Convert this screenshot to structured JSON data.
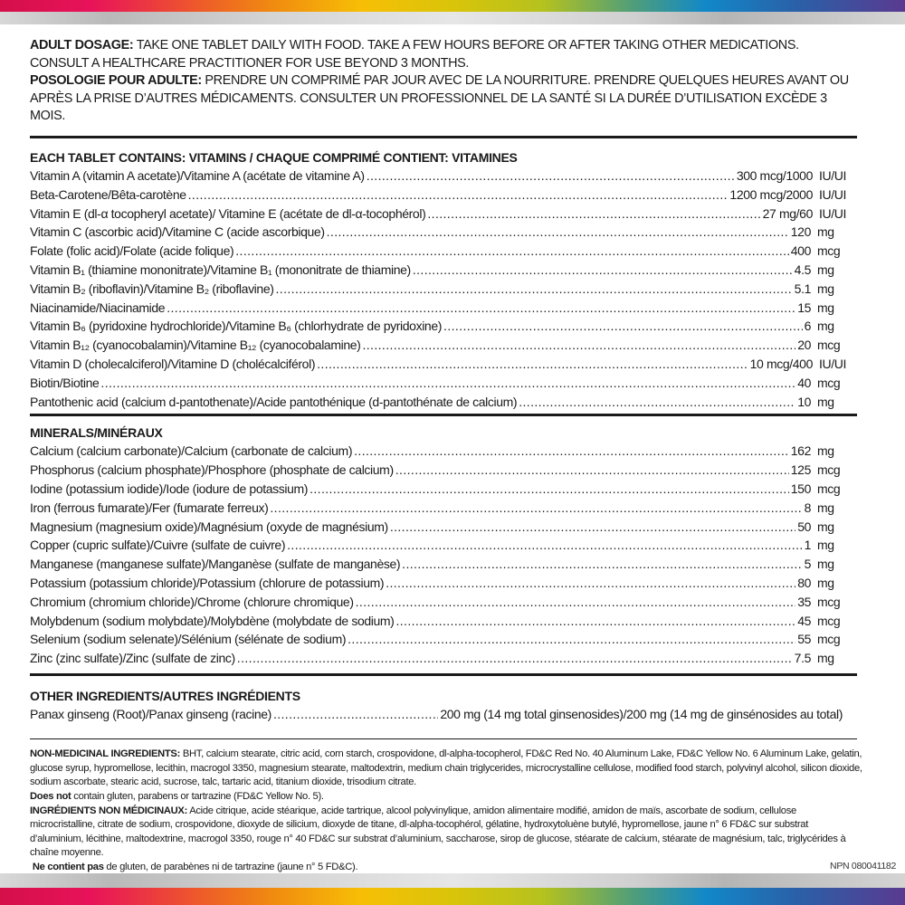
{
  "colors": {
    "rainbow": [
      "#d4104a",
      "#f08a10",
      "#f7bf05",
      "#b5c21e",
      "#1188c8",
      "#5a3a90"
    ],
    "silver": "#d0d0d0",
    "text": "#1a1a1a"
  },
  "dosage": {
    "en_label": "ADULT DOSAGE:",
    "en_text": " TAKE ONE TABLET DAILY WITH FOOD. TAKE A FEW HOURS BEFORE OR AFTER TAKING OTHER MEDICATIONS. CONSULT A HEALTHCARE PRACTITIONER FOR USE BEYOND 3 MONTHS.",
    "fr_label": "POSOLOGIE POUR ADULTE:",
    "fr_text": " PRENDRE UN COMPRIMÉ PAR JOUR AVEC DE LA NOURRITURE. PRENDRE QUELQUES HEURES AVANT OU APRÈS LA PRISE D’AUTRES MÉDICAMENTS. CONSULTER UN PROFESSIONNEL DE LA SANTÉ SI LA DURÉE D’UTILISATION EXCÈDE 3 MOIS."
  },
  "vitamins": {
    "heading": "EACH TABLET CONTAINS: VITAMINS / CHAQUE COMPRIMÉ CONTIENT: VITAMINES",
    "items": [
      {
        "name": "Vitamin A (vitamin A acetate)/Vitamine A (acétate de vitamine A)",
        "value": "300 mcg/1000",
        "unit": "IU/UI"
      },
      {
        "name": "Beta-Carotene/Bêta-carotène",
        "value": "1200 mcg/2000",
        "unit": "IU/UI"
      },
      {
        "name": "Vitamin E (dl-α tocopheryl acetate)/ Vitamine E (acétate de dl-α-tocophérol)",
        "value": "27 mg/60",
        "unit": "IU/UI"
      },
      {
        "name": "Vitamin C (ascorbic acid)/Vitamine C (acide ascorbique)",
        "value": "120",
        "unit": "mg"
      },
      {
        "name": "Folate (folic acid)/Folate (acide folique)",
        "value": "400",
        "unit": "mcg"
      },
      {
        "name": "Vitamin B₁ (thiamine mononitrate)/Vitamine B₁ (mononitrate de thiamine)",
        "value": "4.5",
        "unit": "mg"
      },
      {
        "name": "Vitamin B₂ (riboflavin)/Vitamine B₂ (riboflavine)",
        "value": "5.1",
        "unit": "mg"
      },
      {
        "name": "Niacinamide/Niacinamide",
        "value": "15",
        "unit": "mg"
      },
      {
        "name": "Vitamin B₆ (pyridoxine hydrochloride)/Vitamine B₆ (chlorhydrate de pyridoxine)",
        "value": "6",
        "unit": "mg"
      },
      {
        "name": "Vitamin B₁₂ (cyanocobalamin)/Vitamine B₁₂ (cyanocobalamine)",
        "value": "20",
        "unit": "mcg"
      },
      {
        "name": "Vitamin D (cholecalciferol)/Vitamine D (cholécalciférol)",
        "value": "10 mcg/400",
        "unit": "IU/UI"
      },
      {
        "name": "Biotin/Biotine",
        "value": "40",
        "unit": "mcg"
      },
      {
        "name": "Pantothenic acid (calcium d-pantothenate)/Acide pantothénique (d-pantothénate de calcium)",
        "value": "10",
        "unit": "mg"
      }
    ]
  },
  "minerals": {
    "heading": "MINERALS/MINÉRAUX",
    "items": [
      {
        "name": "Calcium (calcium carbonate)/Calcium (carbonate de calcium)",
        "value": "162",
        "unit": "mg"
      },
      {
        "name": "Phosphorus (calcium phosphate)/Phosphore (phosphate de calcium)",
        "value": "125",
        "unit": "mcg"
      },
      {
        "name": "Iodine (potassium iodide)/Iode (iodure de potassium)",
        "value": "150",
        "unit": "mcg"
      },
      {
        "name": "Iron (ferrous fumarate)/Fer (fumarate ferreux)",
        "value": "8",
        "unit": "mg"
      },
      {
        "name": "Magnesium (magnesium oxide)/Magnésium (oxyde de magnésium)",
        "value": "50",
        "unit": "mg"
      },
      {
        "name": "Copper (cupric sulfate)/Cuivre (sulfate de cuivre)",
        "value": "1",
        "unit": "mg"
      },
      {
        "name": "Manganese (manganese sulfate)/Manganèse (sulfate de manganèse)",
        "value": "5",
        "unit": "mg"
      },
      {
        "name": "Potassium (potassium chloride)/Potassium (chlorure de potassium)",
        "value": "80",
        "unit": "mg"
      },
      {
        "name": "Chromium (chromium chloride)/Chrome (chlorure chromique)",
        "value": "35",
        "unit": "mcg"
      },
      {
        "name": "Molybdenum (sodium molybdate)/Molybdène (molybdate de sodium)",
        "value": "45",
        "unit": "mcg"
      },
      {
        "name": "Selenium (sodium selenate)/Sélénium (sélénate de sodium)",
        "value": "55",
        "unit": "mcg"
      },
      {
        "name": "Zinc (zinc sulfate)/Zinc (sulfate de zinc)",
        "value": "7.5",
        "unit": "mg"
      }
    ]
  },
  "other": {
    "heading": "OTHER INGREDIENTS/AUTRES INGRÉDIENTS",
    "name": "Panax ginseng (Root)/Panax ginseng (racine)",
    "value": "200 mg (14 mg total ginsenosides)/200 mg (14 mg de ginsénosides au total)"
  },
  "non_medicinal": {
    "en_label": "NON-MEDICINAL INGREDIENTS:",
    "en_text": " BHT, calcium stearate, citric acid, corn starch, crospovidone, dl-alpha-tocopherol, FD&C Red No. 40 Aluminum Lake, FD&C Yellow No. 6 Aluminum Lake, gelatin, glucose syrup, hypromellose, lecithin, macrogol 3350, magnesium stearate, maltodextrin, medium chain triglycerides, microcrystalline cellulose, modified food starch, polyvinyl alcohol, silicon dioxide, sodium ascorbate, stearic acid, sucrose, talc, tartaric acid, titanium dioxide, trisodium citrate.",
    "en_free_label": "Does not",
    "en_free_text": " contain gluten, parabens or tartrazine (FD&C Yellow No. 5).",
    "fr_label": "INGRÉDIENTS NON MÉDICINAUX:",
    "fr_text": " Acide citrique, acide stéarique, acide tartrique, alcool polyvinylique, amidon alimentaire modifié, amidon de maïs, ascorbate de sodium, cellulose microcristalline, citrate de sodium, crospovidone, dioxyde de silicium, dioxyde de titane, dl-alpha-tocophérol, gélatine, hydroxytoluène butylé, hypromellose, jaune n° 6 FD&C sur substrat d’aluminium, lécithine, maltodextrine, macrogol 3350, rouge n° 40 FD&C sur substrat d’aluminium, saccharose, sirop de glucose, stéarate de calcium, stéarate de magnésium, talc, triglycérides à chaîne moyenne.",
    "fr_free_label": "Ne contient pas",
    "fr_free_text": " de gluten, de parabènes ni de tartrazine (jaune n° 5 FD&C)."
  },
  "npn": "NPN 080041182"
}
